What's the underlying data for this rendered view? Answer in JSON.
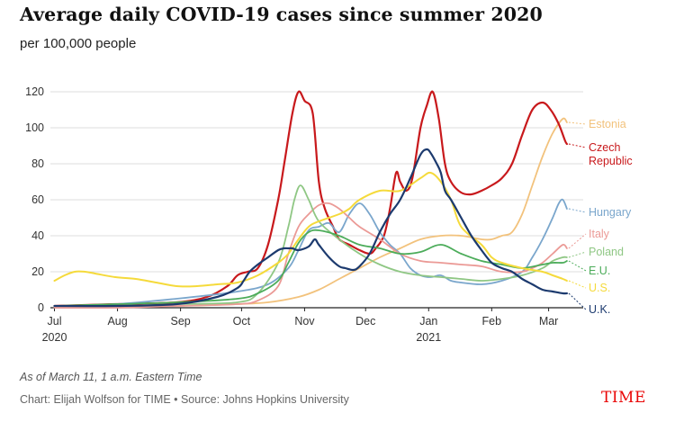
{
  "title": "Average daily COVID-19 cases since summer 2020",
  "subtitle": "per 100,000 people",
  "note": "As of March 11, 1 a.m. Eastern Time",
  "credit": "Chart: Elijah Wolfson for TIME • Source: Johns Hopkins University",
  "logo": "TIME",
  "chart_data": {
    "type": "line",
    "title": "Average daily COVID-19 cases since summer 2020",
    "subtitle": "per 100,000 people",
    "ylim": [
      0,
      125
    ],
    "yticks": [
      0,
      20,
      40,
      60,
      80,
      100,
      120
    ],
    "x_unit": "days since Jul 1, 2020",
    "xlim": [
      -2,
      260
    ],
    "xticks": [
      {
        "label": "Jul",
        "sub": "2020",
        "x": 0
      },
      {
        "label": "Aug",
        "sub": "",
        "x": 31
      },
      {
        "label": "Sep",
        "sub": "",
        "x": 62
      },
      {
        "label": "Oct",
        "sub": "",
        "x": 92
      },
      {
        "label": "Nov",
        "sub": "",
        "x": 123
      },
      {
        "label": "Dec",
        "sub": "",
        "x": 153
      },
      {
        "label": "Jan",
        "sub": "2021",
        "x": 184
      },
      {
        "label": "Feb",
        "sub": "",
        "x": 215
      },
      {
        "label": "Mar",
        "sub": "",
        "x": 243
      }
    ],
    "grid": true,
    "series": [
      {
        "name": "Estonia",
        "label_lines": [
          "Estonia"
        ],
        "color": "#f2c27c",
        "label_y": 102,
        "width": 1.8,
        "x": [
          0,
          30,
          60,
          90,
          105,
          120,
          130,
          140,
          150,
          160,
          170,
          180,
          190,
          200,
          210,
          215,
          220,
          225,
          230,
          235,
          240,
          245,
          250,
          252
        ],
        "y": [
          1,
          1,
          1,
          2,
          3,
          6,
          10,
          16,
          22,
          28,
          33,
          38,
          40,
          40,
          38,
          38,
          40,
          42,
          52,
          68,
          84,
          97,
          105,
          103
        ]
      },
      {
        "name": "Czech Republic",
        "label_lines": [
          "Czech",
          "Republic"
        ],
        "color": "#c8191c",
        "label_y": 89,
        "width": 2.2,
        "x": [
          0,
          30,
          60,
          75,
          85,
          90,
          95,
          100,
          105,
          110,
          113,
          117,
          120,
          123,
          127,
          130,
          133,
          137,
          140,
          145,
          150,
          155,
          158,
          162,
          165,
          168,
          170,
          173,
          176,
          180,
          183,
          186,
          189,
          192,
          195,
          200,
          205,
          210,
          215,
          220,
          225,
          230,
          235,
          240,
          244,
          248,
          251,
          252
        ],
        "y": [
          1,
          2,
          3,
          6,
          12,
          18,
          20,
          22,
          35,
          60,
          80,
          108,
          120,
          115,
          108,
          70,
          55,
          45,
          38,
          35,
          32,
          30,
          33,
          40,
          55,
          75,
          70,
          65,
          72,
          100,
          112,
          120,
          105,
          80,
          70,
          64,
          63,
          65,
          68,
          72,
          80,
          96,
          110,
          114,
          110,
          102,
          93,
          91
        ]
      },
      {
        "name": "Hungary",
        "label_lines": [
          "Hungary"
        ],
        "color": "#7aa6cc",
        "label_y": 53,
        "width": 1.8,
        "x": [
          0,
          30,
          60,
          90,
          105,
          115,
          120,
          125,
          130,
          135,
          140,
          145,
          150,
          155,
          160,
          165,
          170,
          175,
          180,
          185,
          190,
          195,
          200,
          210,
          220,
          230,
          235,
          240,
          245,
          248,
          250,
          252
        ],
        "y": [
          1,
          2,
          5,
          9,
          13,
          22,
          32,
          43,
          45,
          47,
          42,
          52,
          58,
          52,
          42,
          35,
          30,
          22,
          18,
          17,
          18,
          15,
          14,
          13,
          15,
          20,
          28,
          38,
          50,
          58,
          60,
          55
        ]
      },
      {
        "name": "Italy",
        "label_lines": [
          "Italy"
        ],
        "color": "#eb9a96",
        "label_y": 41,
        "width": 1.8,
        "x": [
          0,
          30,
          60,
          90,
          100,
          110,
          115,
          120,
          125,
          130,
          135,
          140,
          145,
          150,
          160,
          170,
          180,
          190,
          200,
          210,
          220,
          230,
          235,
          240,
          245,
          250,
          252
        ],
        "y": [
          0,
          0,
          1,
          2,
          4,
          12,
          30,
          45,
          52,
          57,
          58,
          55,
          50,
          45,
          38,
          30,
          26,
          25,
          24,
          23,
          20,
          20,
          22,
          25,
          30,
          35,
          33
        ]
      },
      {
        "name": "Poland",
        "label_lines": [
          "Poland"
        ],
        "color": "#8fc784",
        "label_y": 31,
        "width": 1.8,
        "x": [
          0,
          30,
          60,
          90,
          100,
          110,
          115,
          118,
          121,
          125,
          130,
          140,
          150,
          160,
          170,
          180,
          190,
          200,
          210,
          220,
          230,
          240,
          245,
          250,
          252
        ],
        "y": [
          1,
          1,
          2,
          3,
          8,
          25,
          45,
          60,
          68,
          60,
          48,
          38,
          30,
          24,
          20,
          18,
          17,
          16,
          15,
          16,
          18,
          22,
          26,
          28,
          28
        ]
      },
      {
        "name": "E.U.",
        "label_lines": [
          "E.U."
        ],
        "color": "#4cac5a",
        "label_y": 20.5,
        "width": 1.8,
        "x": [
          0,
          30,
          60,
          90,
          100,
          110,
          115,
          120,
          125,
          130,
          140,
          150,
          160,
          170,
          180,
          190,
          200,
          210,
          220,
          230,
          240,
          245,
          250,
          252
        ],
        "y": [
          1,
          2,
          3,
          5,
          8,
          15,
          25,
          36,
          42,
          43,
          40,
          35,
          33,
          30,
          31,
          35,
          30,
          26,
          24,
          22,
          24,
          25,
          25,
          26
        ]
      },
      {
        "name": "U.S.",
        "label_lines": [
          "U.S."
        ],
        "color": "#f5da3b",
        "label_y": 11,
        "width": 2,
        "x": [
          0,
          5,
          10,
          15,
          20,
          30,
          40,
          50,
          60,
          70,
          80,
          90,
          100,
          110,
          115,
          120,
          125,
          130,
          140,
          145,
          150,
          160,
          170,
          180,
          185,
          190,
          195,
          200,
          210,
          215,
          220,
          230,
          240,
          245,
          250,
          252
        ],
        "y": [
          15,
          18,
          20,
          20,
          19,
          17,
          16,
          14,
          12,
          12,
          13,
          14,
          18,
          25,
          30,
          38,
          45,
          48,
          52,
          55,
          60,
          65,
          65,
          72,
          75,
          70,
          60,
          45,
          35,
          28,
          25,
          22,
          20,
          18,
          16,
          15
        ]
      },
      {
        "name": "U.K.",
        "label_lines": [
          "U.K."
        ],
        "color": "#1c3a6e",
        "label_y": -1,
        "width": 2.2,
        "x": [
          0,
          30,
          60,
          80,
          90,
          93,
          96,
          100,
          105,
          110,
          113,
          115,
          117,
          120,
          125,
          128,
          130,
          135,
          140,
          143,
          147,
          150,
          155,
          160,
          165,
          170,
          175,
          180,
          183,
          185,
          188,
          190,
          192,
          195,
          200,
          205,
          210,
          215,
          220,
          225,
          230,
          235,
          240,
          245,
          250,
          252
        ],
        "y": [
          1,
          1,
          2,
          6,
          11,
          15,
          20,
          24,
          28,
          32,
          33,
          33,
          33,
          32,
          34,
          38,
          35,
          28,
          23,
          22,
          21,
          23,
          30,
          42,
          52,
          60,
          72,
          85,
          88,
          86,
          80,
          75,
          65,
          60,
          50,
          40,
          32,
          25,
          22,
          20,
          16,
          13,
          10,
          9,
          8,
          8
        ]
      }
    ]
  }
}
